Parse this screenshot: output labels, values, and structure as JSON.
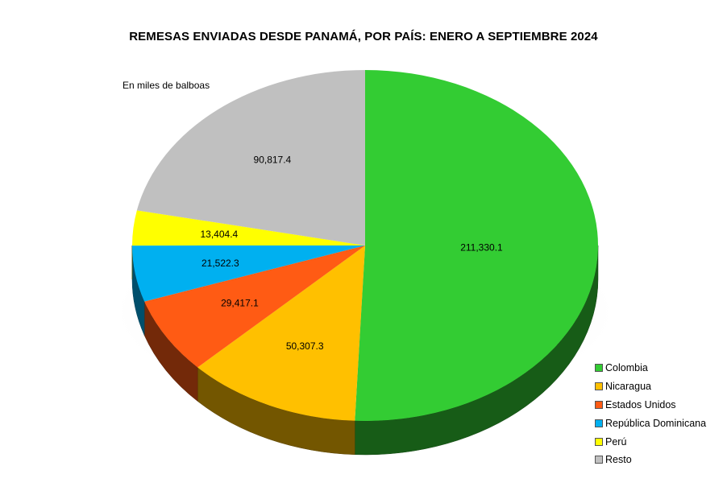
{
  "chart_data": {
    "type": "pie",
    "title": "REMESAS ENVIADAS DESDE PANAMÁ, POR PAÍS: ENERO A SEPTIEMBRE 2024",
    "subtitle": "En miles de balboas",
    "series": [
      {
        "label": "Colombia",
        "value": 211330.1,
        "display": "211,330.1",
        "color": "#33cc33"
      },
      {
        "label": "Nicaragua",
        "value": 50307.3,
        "display": "50,307.3",
        "color": "#ffc000"
      },
      {
        "label": "Estados Unidos",
        "value": 29417.1,
        "display": "29,417.1",
        "color": "#ff5b14"
      },
      {
        "label": "República Dominicana",
        "value": 21522.3,
        "display": "21,522.3",
        "color": "#00b0f0"
      },
      {
        "label": "Perú",
        "value": 13404.4,
        "display": "13,404.4",
        "color": "#ffff00"
      },
      {
        "label": "Resto",
        "value": 90817.4,
        "display": "90,817.4",
        "color": "#c0c0c0"
      }
    ],
    "legend_position": "bottom-right"
  }
}
